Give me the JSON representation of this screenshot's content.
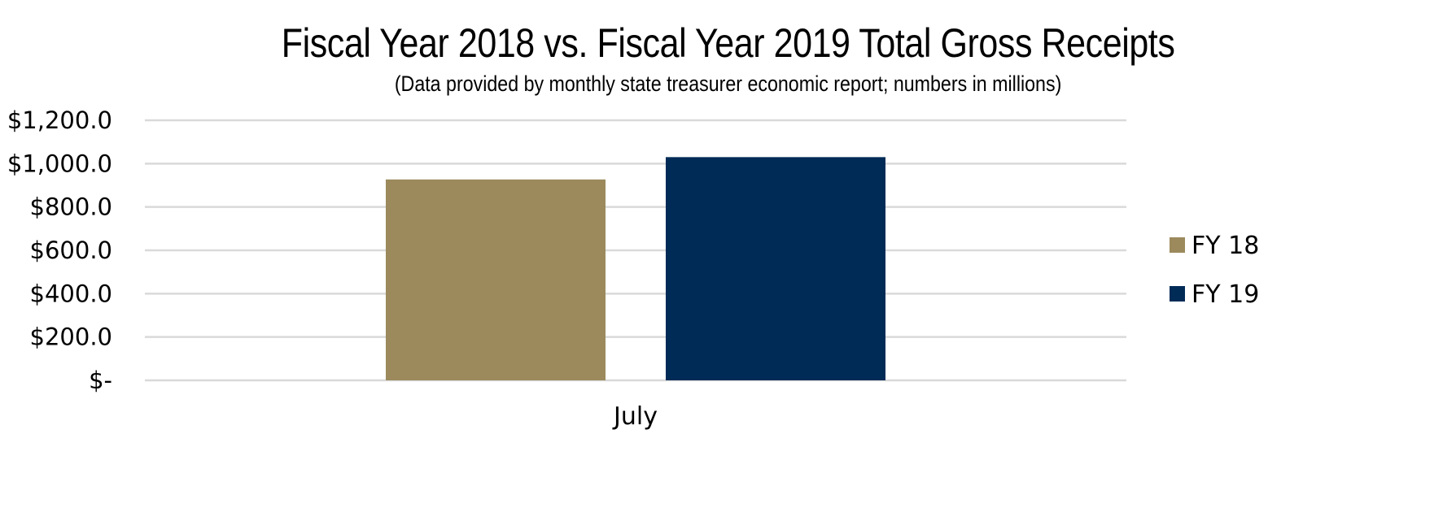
{
  "chart_data": {
    "type": "bar",
    "title": "Fiscal Year 2018 vs. Fiscal Year 2019 Total Gross Receipts",
    "subtitle": "(Data provided by monthly state treasurer economic report; numbers in millions)",
    "categories": [
      "July"
    ],
    "series": [
      {
        "name": "FY 18",
        "values": [
          927
        ],
        "color": "#9c8a5d"
      },
      {
        "name": "FY 19",
        "values": [
          1030
        ],
        "color": "#002b57"
      }
    ],
    "ylim": [
      0,
      1200
    ],
    "yticks": [
      {
        "value": 0,
        "label": "$-"
      },
      {
        "value": 200,
        "label": "$200.0"
      },
      {
        "value": 400,
        "label": "$400.0"
      },
      {
        "value": 600,
        "label": "$600.0"
      },
      {
        "value": 800,
        "label": "$800.0"
      },
      {
        "value": 1000,
        "label": "$1,000.0"
      },
      {
        "value": 1200,
        "label": "$1,200.0"
      }
    ],
    "grid": true,
    "legend_position": "right",
    "gridline_color": "#d9d9d9"
  }
}
